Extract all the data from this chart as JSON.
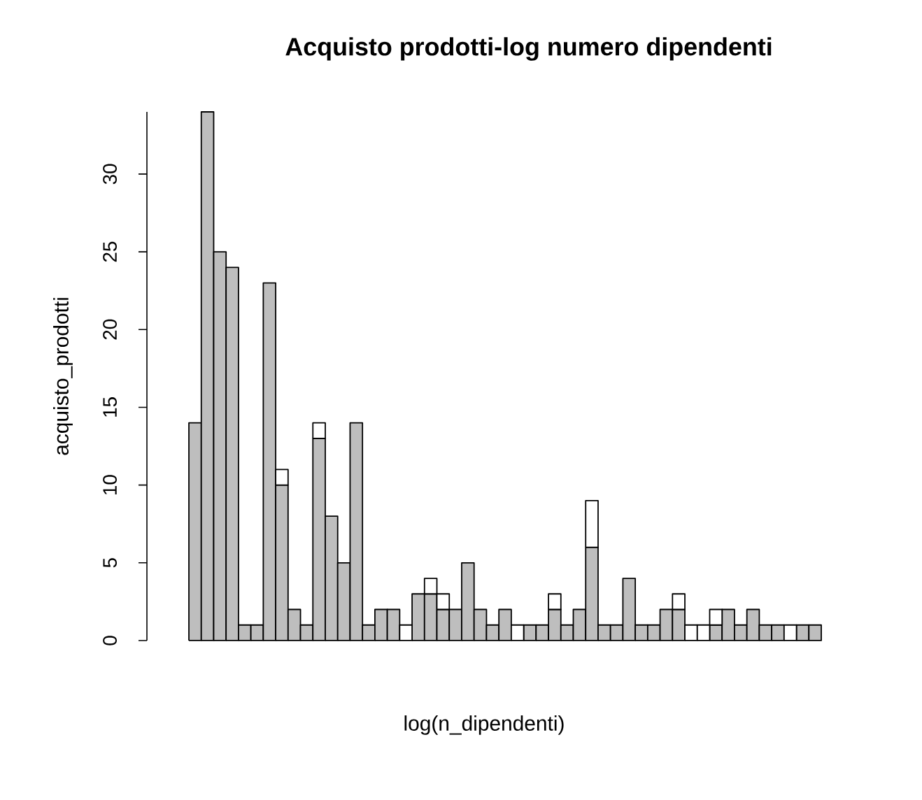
{
  "chart_data": {
    "type": "bar",
    "stacked": true,
    "title": "Acquisto prodotti-log numero dipendenti",
    "xlabel": "log(n_dipendenti)",
    "ylabel": "acquisto_prodotti",
    "categories": [
      null,
      null,
      null,
      null,
      null,
      null,
      null,
      null,
      null,
      null,
      null,
      null,
      null,
      null,
      null,
      null,
      null,
      null,
      null,
      null,
      null,
      null,
      null,
      null,
      null,
      null,
      null,
      null,
      null,
      null,
      null,
      null,
      null,
      null,
      null,
      null,
      null,
      null,
      null,
      null,
      null,
      null,
      null,
      null,
      null,
      null,
      null,
      null,
      null,
      null,
      null
    ],
    "series": [
      {
        "color": "#bebebe",
        "values": [
          14,
          34,
          25,
          24,
          1,
          1,
          23,
          10,
          2,
          1,
          13,
          8,
          5,
          14,
          1,
          2,
          2,
          null,
          3,
          3,
          2,
          2,
          5,
          2,
          1,
          2,
          null,
          1,
          1,
          2,
          1,
          2,
          6,
          1,
          1,
          4,
          1,
          1,
          2,
          2,
          null,
          null,
          1,
          2,
          1,
          2,
          1,
          1,
          null,
          1,
          1
        ]
      },
      {
        "color": "#ffffff",
        "values": [
          null,
          null,
          null,
          null,
          null,
          null,
          null,
          1,
          null,
          null,
          1,
          null,
          null,
          null,
          null,
          null,
          null,
          1,
          null,
          1,
          1,
          null,
          null,
          null,
          null,
          null,
          1,
          null,
          null,
          1,
          null,
          null,
          3,
          null,
          null,
          null,
          null,
          null,
          null,
          1,
          1,
          1,
          1,
          null,
          null,
          null,
          null,
          null,
          1,
          null,
          null
        ]
      }
    ],
    "ylim": [
      0,
      34
    ],
    "yticks": [
      0,
      5,
      10,
      15,
      20,
      25,
      30
    ],
    "tick_labels": "y",
    "grid": false
  }
}
